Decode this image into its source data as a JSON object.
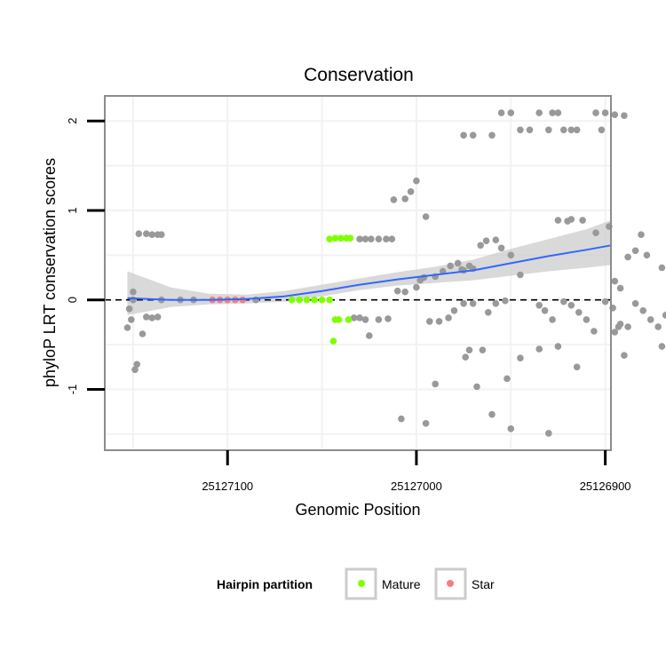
{
  "chart_data": {
    "type": "scatter",
    "title": "Conservation",
    "xlabel": "Genomic Position",
    "ylabel": "phyloP LRT conservation scores",
    "x_reversed": true,
    "xlim": [
      25127165,
      25126897
    ],
    "ylim": [
      -1.68,
      2.28
    ],
    "x_ticks": [
      25127100,
      25127000,
      25126900
    ],
    "y_ticks": [
      -1,
      0,
      1,
      2
    ],
    "grid": true,
    "reference_line": {
      "y": 0,
      "style": "dashed",
      "color": "#000000"
    },
    "legend": {
      "title": "Hairpin partition",
      "placement": "bottom",
      "entries": [
        {
          "label": "Mature",
          "color": "#7fff00"
        },
        {
          "label": "Star",
          "color": "#f08080"
        }
      ]
    },
    "colors": {
      "other": "#999999",
      "mature": "#7fff00",
      "star": "#f08080",
      "smooth": "#3366ff",
      "band": "#cccccc"
    },
    "smooth": {
      "x": [
        25127153,
        25127130,
        25127110,
        25127090,
        25127070,
        25127050,
        25127030,
        25127010,
        25126990,
        25126970,
        25126950,
        25126930,
        25126910,
        25126897
      ],
      "y": [
        0.02,
        0.0,
        0.0,
        0.01,
        0.04,
        0.1,
        0.17,
        0.23,
        0.28,
        0.33,
        0.41,
        0.49,
        0.56,
        0.61
      ],
      "lower": [
        -0.17,
        -0.08,
        -0.05,
        -0.04,
        -0.02,
        0.04,
        0.11,
        0.16,
        0.19,
        0.22,
        0.27,
        0.32,
        0.36,
        0.39
      ],
      "upper": [
        0.32,
        0.14,
        0.07,
        0.06,
        0.1,
        0.17,
        0.24,
        0.31,
        0.37,
        0.45,
        0.57,
        0.68,
        0.79,
        0.89
      ]
    },
    "series": [
      {
        "name": "Mature",
        "color": "#7fff00",
        "points": [
          [
            25127046,
            0.68
          ],
          [
            25127043,
            0.69
          ],
          [
            25127040,
            0.69
          ],
          [
            25127037,
            0.69
          ],
          [
            25127035,
            0.69
          ],
          [
            25127043,
            -0.22
          ],
          [
            25127041,
            -0.22
          ],
          [
            25127036,
            -0.22
          ],
          [
            25127044,
            -0.46
          ],
          [
            25127066,
            0.0
          ],
          [
            25127062,
            0.0
          ],
          [
            25127058,
            0.0
          ],
          [
            25127054,
            0.0
          ],
          [
            25127050,
            0.0
          ],
          [
            25127046,
            0.0
          ]
        ]
      },
      {
        "name": "Star",
        "color": "#f08080",
        "points": [
          [
            25127108,
            0.0
          ],
          [
            25127104,
            0.0
          ],
          [
            25127100,
            0.0
          ],
          [
            25127096,
            0.0
          ],
          [
            25127092,
            0.0
          ]
        ]
      },
      {
        "name": "",
        "color": "#999999",
        "points": [
          [
            25127153,
            -0.31
          ],
          [
            25127152,
            -0.1
          ],
          [
            25127150,
            0.09
          ],
          [
            25127151,
            -0.22
          ],
          [
            25127148,
            -0.72
          ],
          [
            25127149,
            -0.78
          ],
          [
            25127145,
            -0.38
          ],
          [
            25127143,
            -0.19
          ],
          [
            25127140,
            -0.2
          ],
          [
            25127137,
            -0.19
          ],
          [
            25127147,
            0.74
          ],
          [
            25127143,
            0.74
          ],
          [
            25127140,
            0.73
          ],
          [
            25127137,
            0.73
          ],
          [
            25127135,
            0.73
          ],
          [
            25127150,
            0.0
          ],
          [
            25127135,
            0.0
          ],
          [
            25127125,
            0.0
          ],
          [
            25127118,
            0.0
          ],
          [
            25127085,
            0.0
          ],
          [
            25127030,
            0.68
          ],
          [
            25127027,
            0.68
          ],
          [
            25127024,
            0.68
          ],
          [
            25127020,
            0.68
          ],
          [
            25127016,
            0.68
          ],
          [
            25127013,
            0.68
          ],
          [
            25127033,
            -0.2
          ],
          [
            25127030,
            -0.2
          ],
          [
            25127027,
            -0.22
          ],
          [
            25127025,
            -0.4
          ],
          [
            25127020,
            -0.22
          ],
          [
            25127015,
            -0.21
          ],
          [
            25127012,
            1.12
          ],
          [
            25127006,
            1.13
          ],
          [
            25127003,
            1.21
          ],
          [
            25127000,
            1.33
          ],
          [
            25126995,
            0.93
          ],
          [
            25127010,
            0.1
          ],
          [
            25127006,
            0.09
          ],
          [
            25127000,
            0.14
          ],
          [
            25126998,
            0.22
          ],
          [
            25126996,
            0.25
          ],
          [
            25126990,
            0.26
          ],
          [
            25126986,
            0.32
          ],
          [
            25126982,
            0.38
          ],
          [
            25126978,
            0.41
          ],
          [
            25126975,
            0.33
          ],
          [
            25126970,
            0.35
          ],
          [
            25126966,
            0.61
          ],
          [
            25126963,
            0.66
          ],
          [
            25126958,
            0.67
          ],
          [
            25126955,
            0.58
          ],
          [
            25126950,
            0.5
          ],
          [
            25126945,
            0.28
          ],
          [
            25126976,
            0.34
          ],
          [
            25126972,
            0.38
          ],
          [
            25126993,
            -0.24
          ],
          [
            25126988,
            -0.24
          ],
          [
            25126983,
            -0.2
          ],
          [
            25126980,
            -0.12
          ],
          [
            25126975,
            -0.04
          ],
          [
            25126970,
            -0.04
          ],
          [
            25126962,
            -0.14
          ],
          [
            25126958,
            -0.04
          ],
          [
            25126953,
            -0.01
          ],
          [
            25126974,
            -0.64
          ],
          [
            25126972,
            -0.56
          ],
          [
            25126965,
            -0.56
          ],
          [
            25126968,
            -0.97
          ],
          [
            25126945,
            -0.65
          ],
          [
            25126952,
            -0.88
          ],
          [
            25127008,
            -1.33
          ],
          [
            25126995,
            -1.38
          ],
          [
            25126990,
            -0.94
          ],
          [
            25126960,
            -1.28
          ],
          [
            25126950,
            -1.44
          ],
          [
            25126930,
            -1.49
          ],
          [
            25126975,
            1.84
          ],
          [
            25126970,
            1.84
          ],
          [
            25126960,
            1.84
          ],
          [
            25126955,
            2.09
          ],
          [
            25126950,
            2.09
          ],
          [
            25126945,
            1.9
          ],
          [
            25126940,
            1.9
          ],
          [
            25126935,
            2.09
          ],
          [
            25126930,
            1.9
          ],
          [
            25126928,
            2.09
          ],
          [
            25126925,
            2.09
          ],
          [
            25126922,
            1.9
          ],
          [
            25126918,
            1.9
          ],
          [
            25126915,
            1.9
          ],
          [
            25126905,
            2.09
          ],
          [
            25126900,
            2.09
          ],
          [
            25126895,
            2.07
          ],
          [
            25126890,
            2.06
          ],
          [
            25126902,
            1.9
          ],
          [
            25126925,
            0.89
          ],
          [
            25126920,
            0.88
          ],
          [
            25126918,
            0.9
          ],
          [
            25126912,
            0.89
          ],
          [
            25126905,
            0.75
          ],
          [
            25126898,
            0.82
          ],
          [
            25126895,
            0.21
          ],
          [
            25126892,
            0.13
          ],
          [
            25126888,
            0.48
          ],
          [
            25126884,
            0.55
          ],
          [
            25126881,
            0.73
          ],
          [
            25126878,
            0.5
          ],
          [
            25126870,
            0.36
          ],
          [
            25126865,
            0.28
          ],
          [
            25126860,
            0.21
          ],
          [
            25126856,
            0.11
          ],
          [
            25126935,
            -0.06
          ],
          [
            25126932,
            -0.12
          ],
          [
            25126928,
            -0.22
          ],
          [
            25126922,
            -0.02
          ],
          [
            25126918,
            -0.06
          ],
          [
            25126914,
            -0.14
          ],
          [
            25126910,
            -0.22
          ],
          [
            25126906,
            -0.35
          ],
          [
            25126900,
            -0.02
          ],
          [
            25126896,
            -0.09
          ],
          [
            25126892,
            -0.27
          ],
          [
            25126888,
            -0.3
          ],
          [
            25126884,
            -0.04
          ],
          [
            25126880,
            -0.12
          ],
          [
            25126876,
            -0.22
          ],
          [
            25126872,
            -0.3
          ],
          [
            25126868,
            -0.17
          ],
          [
            25126864,
            -0.07
          ],
          [
            25126860,
            -0.21
          ],
          [
            25126895,
            -0.36
          ],
          [
            25126893,
            -0.3
          ],
          [
            25126860,
            -0.74
          ],
          [
            25126870,
            -0.52
          ],
          [
            25126890,
            -0.62
          ],
          [
            25126925,
            -0.52
          ],
          [
            25126935,
            -0.55
          ],
          [
            25126915,
            -0.75
          ]
        ]
      }
    ]
  }
}
